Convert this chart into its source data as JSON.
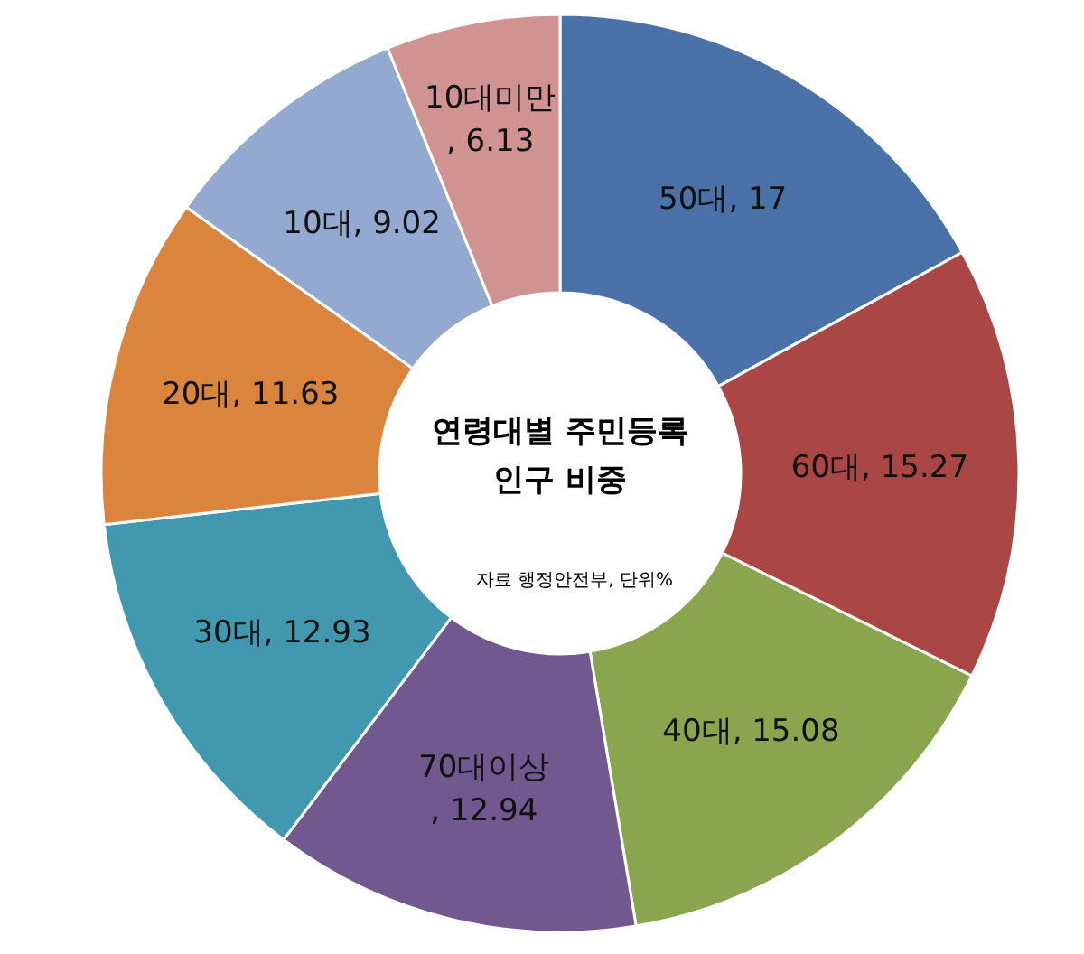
{
  "chart_data": {
    "type": "donut",
    "title": "연령대별 주민등록 인구 비중",
    "annotations": [
      "자료 행정안전부, 단위%"
    ],
    "categories": [
      "50대",
      "60대",
      "40대",
      "70대이상",
      "30대",
      "20대",
      "10대",
      "10대미만"
    ],
    "values": [
      17,
      15.27,
      15.08,
      12.94,
      12.93,
      11.63,
      9.02,
      6.13
    ],
    "value_labels": [
      ", 17",
      ", 15.27",
      ", 15.08",
      ", 12.94",
      ", 12.93",
      ", 11.63",
      ", 9.02",
      ", 6.13"
    ],
    "colors": [
      "#4a72a8",
      "#aa4644",
      "#89a54e",
      "#71588f",
      "#4198af",
      "#db843d",
      "#93a9cf",
      "#d09392"
    ]
  }
}
